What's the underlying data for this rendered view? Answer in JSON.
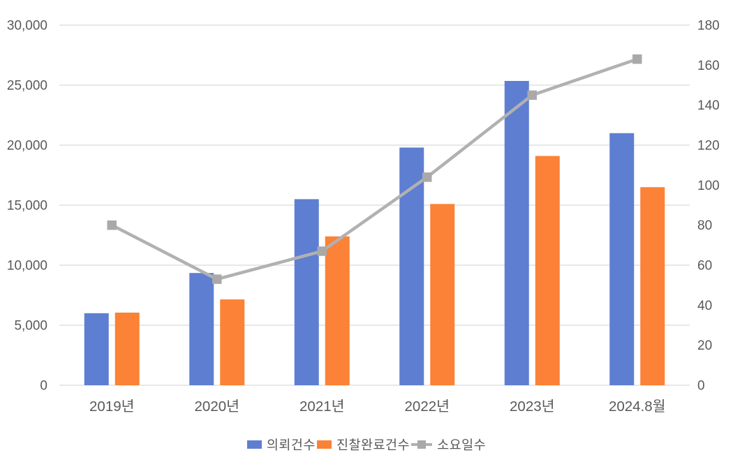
{
  "chart_data": {
    "type": "combo-bar-line",
    "title": "",
    "categories": [
      "2019년",
      "2020년",
      "2021년",
      "2022년",
      "2023년",
      "2024.8월"
    ],
    "series": [
      {
        "name": "의뢰건수",
        "key": "requests",
        "type": "bar",
        "axis": "left",
        "color": "#5E7ED2",
        "values": [
          6000,
          9350,
          15500,
          19800,
          25350,
          21000
        ]
      },
      {
        "name": "진찰완료건수",
        "key": "completed",
        "type": "bar",
        "axis": "left",
        "color": "#FB8236",
        "values": [
          6050,
          7150,
          12400,
          15100,
          19100,
          16500
        ]
      },
      {
        "name": "소요일수",
        "key": "days",
        "type": "line",
        "axis": "right",
        "color": "#B1B1B1",
        "marker_color": "#A9A9A9",
        "values": [
          80,
          53,
          67,
          104,
          145,
          163
        ]
      }
    ],
    "left_axis": {
      "min": 0,
      "max": 30000,
      "step": 5000,
      "tick_labels": [
        "0",
        "5,000",
        "10,000",
        "15,000",
        "20,000",
        "25,000",
        "30,000"
      ]
    },
    "right_axis": {
      "min": 0,
      "max": 180,
      "step": 20,
      "tick_labels": [
        "0",
        "20",
        "40",
        "60",
        "80",
        "100",
        "120",
        "140",
        "160",
        "180"
      ]
    },
    "grid": true,
    "legend_position": "bottom",
    "colors": {
      "gridline": "#D9D9D9",
      "axis_text": "#595959",
      "background": "#FFFFFF"
    }
  }
}
